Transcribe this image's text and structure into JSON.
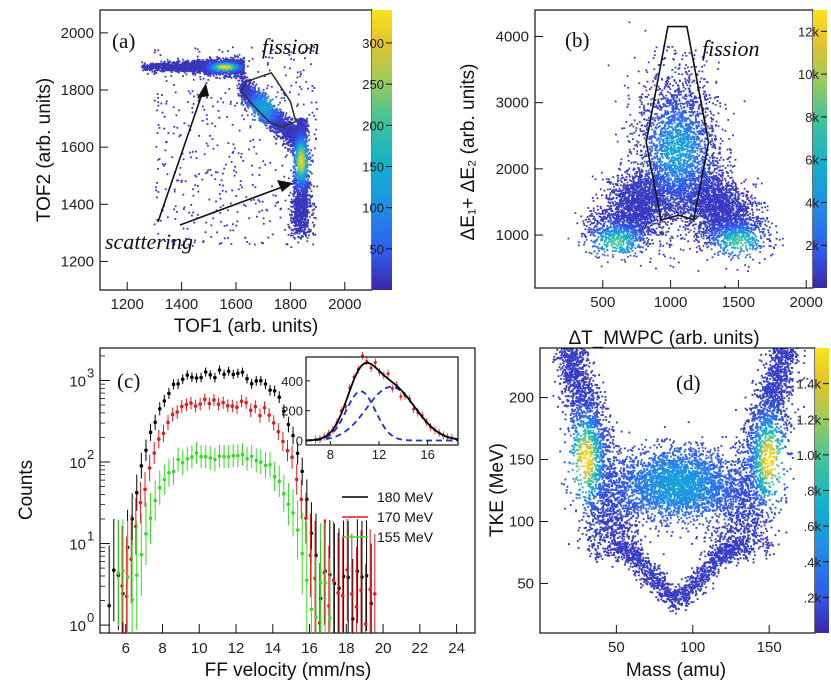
{
  "colors": {
    "scale": [
      "#3d26a8",
      "#2f5cf0",
      "#1f8fe6",
      "#12b2c9",
      "#3fc49a",
      "#9dcb5a",
      "#e2c22a",
      "#fbe31a"
    ],
    "s180": "#000000",
    "s170": "#e41a1c",
    "s155": "#33dd22",
    "fit_total": "#000000",
    "fit_component": "#1f2fd0",
    "inset_points": "#e41a1c"
  },
  "chart_data": [
    {
      "panel": "a",
      "type": "heatmap",
      "panel_label": "(a)",
      "xlabel": "TOF1 (arb. units)",
      "ylabel": "TOF2 (arb. units)",
      "xlim": [
        1100,
        2100
      ],
      "ylim": [
        1100,
        2080
      ],
      "xticks": [
        "1200",
        "1400",
        "1600",
        "1800",
        "2000"
      ],
      "xtick_values": [
        1200,
        1400,
        1600,
        1800,
        2000
      ],
      "yticks": [
        "1200",
        "1400",
        "1600",
        "1800",
        "2000"
      ],
      "ytick_values": [
        1200,
        1400,
        1600,
        1800,
        2000
      ],
      "colorbar_ticks": [
        "50",
        "100",
        "150",
        "200",
        "250",
        "300"
      ],
      "colorbar_values": [
        50,
        100,
        150,
        200,
        250,
        300
      ],
      "colorbar_max": 340,
      "annotations": {
        "fission": "fission",
        "scattering": "scattering"
      },
      "fission_gate": [
        [
          1640,
          1830
        ],
        [
          1730,
          1860
        ],
        [
          1800,
          1760
        ],
        [
          1820,
          1690
        ],
        [
          1770,
          1670
        ],
        [
          1720,
          1690
        ],
        [
          1650,
          1760
        ],
        [
          1620,
          1800
        ]
      ],
      "clusters": [
        {
          "x": [
            1250,
            1630
          ],
          "y": 1880,
          "peak_x": 1560,
          "max": 330
        },
        {
          "x": [
            1620,
            1830
          ],
          "y": [
            1810,
            1630
          ],
          "max": 200
        },
        {
          "x": 1840,
          "y": [
            1700,
            1280
          ],
          "peak_y": 1550,
          "max": 320
        }
      ]
    },
    {
      "panel": "b",
      "type": "heatmap",
      "panel_label": "(b)",
      "xlabel": "ΔT_MWPC (arb. units)",
      "ylabel": "ΔE₁+ ΔE₂ (arb. units)",
      "xlim": [
        0,
        2050
      ],
      "ylim": [
        200,
        4400
      ],
      "xticks": [
        "500",
        "1000",
        "1500",
        "2000"
      ],
      "xtick_values": [
        500,
        1000,
        1500,
        2000
      ],
      "yticks": [
        "1000",
        "2000",
        "3000",
        "4000"
      ],
      "ytick_values": [
        1000,
        2000,
        3000,
        4000
      ],
      "colorbar_ticks": [
        "2k",
        "4k",
        "6k",
        "8k",
        "10k",
        "12k"
      ],
      "colorbar_values": [
        2000,
        4000,
        6000,
        8000,
        10000,
        12000
      ],
      "colorbar_max": 13000,
      "annotations": {
        "fission": "fission"
      },
      "fission_gate": [
        [
          980,
          4150
        ],
        [
          1120,
          4150
        ],
        [
          1280,
          2400
        ],
        [
          1170,
          1230
        ],
        [
          1060,
          1300
        ],
        [
          930,
          1230
        ],
        [
          820,
          2400
        ]
      ],
      "clusters": [
        {
          "x": 600,
          "y": 900,
          "max": 12000
        },
        {
          "x": 1050,
          "y": 2300,
          "max": 8000
        },
        {
          "x": 1500,
          "y": 900,
          "max": 12000
        }
      ]
    },
    {
      "panel": "c",
      "type": "scatter",
      "panel_label": "(c)",
      "xlabel": "FF velocity    (mm/ns)",
      "ylabel": "Counts",
      "xlim": [
        4.6,
        25
      ],
      "ylim": [
        0.8,
        2500
      ],
      "yscale": "log",
      "xticks": [
        "6",
        "8",
        "10",
        "12",
        "14",
        "16",
        "18",
        "20",
        "22",
        "24"
      ],
      "xtick_values": [
        6,
        8,
        10,
        12,
        14,
        16,
        18,
        20,
        22,
        24
      ],
      "yticks": [
        "10",
        "10",
        "10",
        "10"
      ],
      "ytick_exponents": [
        "0",
        "1",
        "2",
        "3"
      ],
      "ytick_values": [
        1,
        10,
        100,
        1000
      ],
      "legend_position": "right",
      "series": [
        {
          "name": "180 MeV",
          "color": "#000000",
          "scale": 1.0,
          "x0": 5.1,
          "x1": 19.5
        },
        {
          "name": "170 MeV",
          "color": "#e41a1c",
          "scale": 0.42,
          "x0": 5.8,
          "x1": 19.6
        },
        {
          "name": "155 MeV",
          "color": "#33dd22",
          "scale": 0.1,
          "x0": 5.6,
          "x1": 17.2
        }
      ],
      "peak": 1200,
      "inset": {
        "type": "line",
        "xlim": [
          6,
          18.5
        ],
        "ylim": [
          -30,
          560
        ],
        "xticks": [
          "8",
          "12",
          "16"
        ],
        "xtick_values": [
          8,
          12,
          16
        ],
        "yticks": [
          "0",
          "200",
          "400"
        ],
        "ytick_values": [
          0,
          200,
          400
        ],
        "components": [
          {
            "mu": 10.5,
            "sigma": 1.2,
            "amp": 330
          },
          {
            "mu": 13.0,
            "sigma": 2.0,
            "amp": 360
          }
        ]
      }
    },
    {
      "panel": "d",
      "type": "heatmap",
      "panel_label": "(d)",
      "xlabel": "Mass   (amu)",
      "ylabel": "TKE   (MeV)",
      "xlim": [
        0,
        180
      ],
      "ylim": [
        10,
        240
      ],
      "xticks": [
        "50",
        "100",
        "150"
      ],
      "xtick_values": [
        50,
        100,
        150
      ],
      "yticks": [
        "50",
        "100",
        "150",
        "200"
      ],
      "ytick_values": [
        50,
        100,
        150,
        200
      ],
      "colorbar_ticks": [
        ".2k",
        ".4k",
        ".6k",
        ".8k",
        "1.0k",
        "1.2k",
        "1.4k"
      ],
      "colorbar_values": [
        200,
        400,
        600,
        800,
        1000,
        1200,
        1400
      ],
      "colorbar_max": 1600,
      "clusters": [
        {
          "x": [
            20,
            50
          ],
          "y": [
            230,
            60
          ],
          "peak": [
            30,
            150
          ],
          "max": 1500
        },
        {
          "x": [
            160,
            130
          ],
          "y": [
            230,
            60
          ],
          "peak": [
            150,
            150
          ],
          "max": 1500
        },
        {
          "x": 90,
          "y": 130,
          "max": 1000
        }
      ]
    }
  ]
}
